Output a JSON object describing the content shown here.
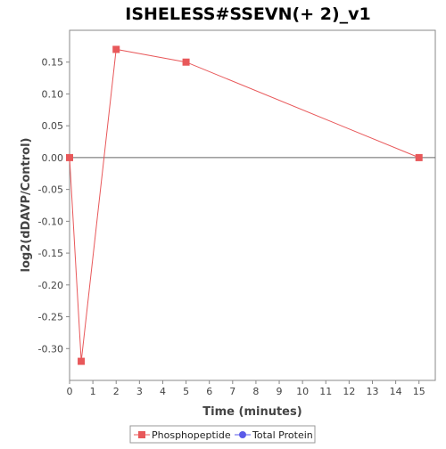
{
  "chart_data": {
    "type": "line",
    "title": "ISHELESS#SSEVN(+ 2)_v1",
    "xlabel": "Time (minutes)",
    "ylabel": "log2(dDAVP/Control)",
    "xlim": [
      0,
      15.7
    ],
    "ylim": [
      -0.35,
      0.2
    ],
    "x_ticks": [
      0,
      1,
      2,
      3,
      4,
      5,
      6,
      7,
      8,
      9,
      10,
      11,
      12,
      13,
      14,
      15
    ],
    "y_ticks": [
      -0.3,
      -0.25,
      -0.2,
      -0.15,
      -0.1,
      -0.05,
      0.0,
      0.05,
      0.1,
      0.15
    ],
    "y_tick_labels": [
      "-0.30",
      "-0.25",
      "-0.20",
      "-0.15",
      "-0.10",
      "-0.05",
      "0.00",
      "0.05",
      "0.10",
      "0.15"
    ],
    "zero_line": true,
    "grid": false,
    "legend_position": "bottom-center",
    "series": [
      {
        "name": "Phosphopeptide",
        "color": "#e8585a",
        "marker": "square",
        "x": [
          0,
          0.5,
          2,
          5,
          15
        ],
        "y": [
          0.0,
          -0.32,
          0.17,
          0.15,
          0.0
        ]
      },
      {
        "name": "Total Protein",
        "color": "#5a5ae8",
        "marker": "circle",
        "x": [],
        "y": []
      }
    ]
  }
}
